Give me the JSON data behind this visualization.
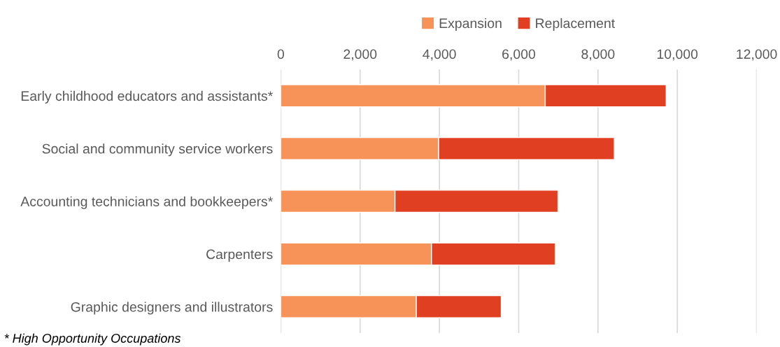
{
  "chart_data": {
    "type": "bar",
    "orientation": "horizontal",
    "stacked": true,
    "categories": [
      "Early childhood educators and assistants*",
      "Social and community service workers",
      "Accounting technicians and bookkeepers*",
      "Carpenters",
      "Graphic designers and illustrators"
    ],
    "series": [
      {
        "name": "Expansion",
        "color": "#f79359",
        "values": [
          6670,
          3980,
          2880,
          3800,
          3420
        ]
      },
      {
        "name": "Replacement",
        "color": "#e03f22",
        "values": [
          3050,
          4430,
          4110,
          3120,
          2140
        ]
      }
    ],
    "xlim": [
      0,
      12000
    ],
    "xticks": [
      {
        "value": 0,
        "label": "0"
      },
      {
        "value": 2000,
        "label": "2,000"
      },
      {
        "value": 4000,
        "label": "4,000"
      },
      {
        "value": 6000,
        "label": "6,000"
      },
      {
        "value": 8000,
        "label": "8,000"
      },
      {
        "value": 10000,
        "label": "10,000"
      },
      {
        "value": 12000,
        "label": "12,000"
      }
    ],
    "grid": "x",
    "legend": "top",
    "annotations": [
      "* High Opportunity Occupations"
    ]
  }
}
